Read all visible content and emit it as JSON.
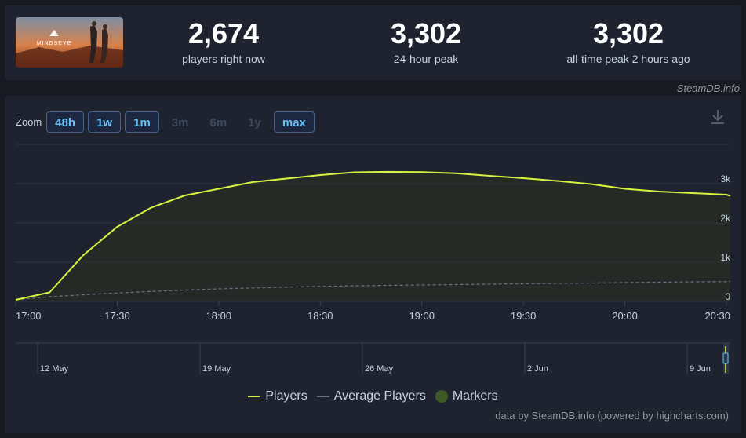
{
  "stats": {
    "current": {
      "value": "2,674",
      "label": "players right now"
    },
    "peak24": {
      "value": "3,302",
      "label": "24-hour peak"
    },
    "alltime": {
      "value": "3,302",
      "label": "all-time peak 2 hours ago"
    }
  },
  "game": {
    "logo_text": "MINDSEYE"
  },
  "credit_top": "SteamDB.info",
  "zoom": {
    "label": "Zoom",
    "buttons": [
      {
        "label": "48h",
        "enabled": true
      },
      {
        "label": "1w",
        "enabled": true
      },
      {
        "label": "1m",
        "enabled": true
      },
      {
        "label": "3m",
        "enabled": false
      },
      {
        "label": "6m",
        "enabled": false
      },
      {
        "label": "1y",
        "enabled": false
      },
      {
        "label": "max",
        "enabled": true
      }
    ]
  },
  "legend": {
    "players": "Players",
    "average": "Average Players",
    "markers": "Markers"
  },
  "credit_bottom": "data by SteamDB.info (powered by highcharts.com)",
  "colors": {
    "players_line": "#d8f240",
    "average_line": "#6b7280",
    "markers": "#3d5a26",
    "button_text": "#66c0f4"
  },
  "chart_data": {
    "type": "line",
    "x_unit": "time of day",
    "x": [
      "17:00",
      "17:10",
      "17:20",
      "17:30",
      "17:40",
      "17:50",
      "18:00",
      "18:10",
      "18:20",
      "18:30",
      "18:40",
      "18:50",
      "19:00",
      "19:10",
      "19:20",
      "19:30",
      "19:40",
      "19:50",
      "20:00",
      "20:10",
      "20:20",
      "20:30",
      "20:35"
    ],
    "series": [
      {
        "name": "Players",
        "values": [
          40,
          230,
          1180,
          1900,
          2390,
          2700,
          2870,
          3040,
          3130,
          3220,
          3290,
          3302,
          3295,
          3265,
          3200,
          3140,
          3070,
          2990,
          2870,
          2800,
          2760,
          2720,
          2690
        ]
      },
      {
        "name": "Average Players",
        "values": [
          40,
          120,
          170,
          215,
          255,
          290,
          320,
          345,
          365,
          385,
          400,
          410,
          420,
          430,
          440,
          450,
          460,
          470,
          480,
          490,
          500,
          505,
          510
        ]
      }
    ],
    "x_ticks": [
      "17:00",
      "17:30",
      "18:00",
      "18:30",
      "19:00",
      "19:30",
      "20:00",
      "20:30"
    ],
    "y_ticks": [
      "0",
      "1k",
      "2k",
      "3k"
    ],
    "ylim": [
      0,
      4000
    ],
    "navigator_labels": [
      "12 May",
      "19 May",
      "26 May",
      "2 Jun",
      "9 Jun"
    ],
    "grid": true,
    "legend_position": "bottom"
  }
}
